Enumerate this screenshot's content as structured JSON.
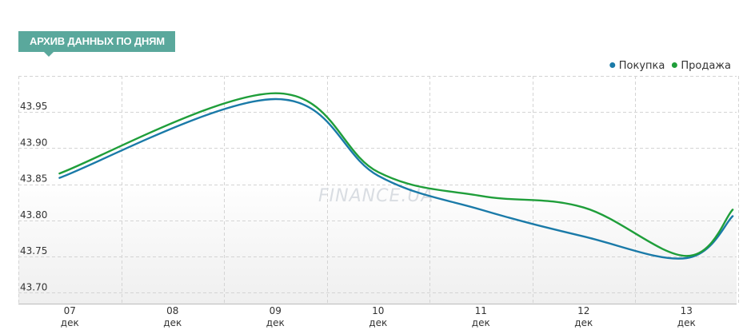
{
  "header": {
    "title": "АРХИВ ДАННЫХ ПО ДНЯМ"
  },
  "watermark": "FINANCE.UA",
  "colors": {
    "buy": "#1a7aa8",
    "sell": "#1f9e3a",
    "badge": "#5aa89c"
  },
  "chart_data": {
    "type": "line",
    "x_labels": [
      {
        "day": "07",
        "month": "дек"
      },
      {
        "day": "08",
        "month": "дек"
      },
      {
        "day": "09",
        "month": "дек"
      },
      {
        "day": "10",
        "month": "дек"
      },
      {
        "day": "11",
        "month": "дек"
      },
      {
        "day": "12",
        "month": "дек"
      },
      {
        "day": "13",
        "month": "дек"
      }
    ],
    "y_ticks": [
      "43.70",
      "43.75",
      "43.80",
      "43.85",
      "43.90",
      "43.95"
    ],
    "ylim": [
      43.685,
      44.0
    ],
    "grid": true,
    "legend_position": "top-right",
    "series": [
      {
        "name": "Покупка",
        "color": "#1a7aa8",
        "x": [
          -0.1,
          2.0,
          3.0,
          4.0,
          5.0,
          6.0,
          6.45
        ],
        "values": [
          43.859,
          43.968,
          43.862,
          43.815,
          43.778,
          43.748,
          43.806
        ]
      },
      {
        "name": "Продажа",
        "color": "#1f9e3a",
        "x": [
          -0.1,
          2.0,
          3.0,
          4.0,
          5.0,
          6.0,
          6.45
        ],
        "values": [
          43.865,
          43.976,
          43.867,
          43.834,
          43.818,
          43.751,
          43.815
        ]
      }
    ]
  }
}
